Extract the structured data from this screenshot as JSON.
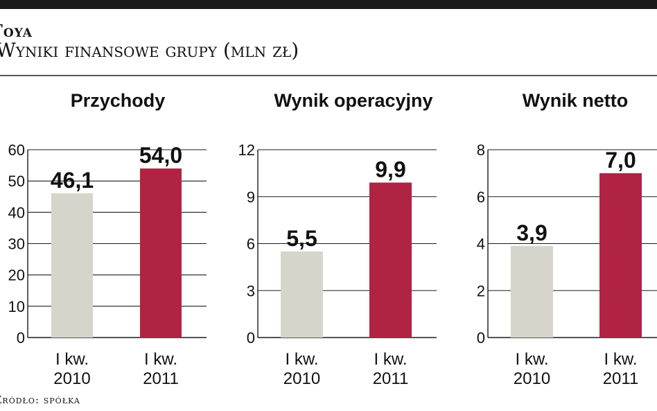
{
  "header": {
    "company": "Toya",
    "subtitle": "Wyniki finansowe grupy (mln zł)"
  },
  "footer": {
    "source": "Źródło: spółka"
  },
  "colors": {
    "bar_2010": "#d6d5cc",
    "bar_2011": "#b02343",
    "grid": "#1a1a1a",
    "text": "#111111"
  },
  "chart_data": [
    {
      "type": "bar",
      "title": "Przychody",
      "categories": [
        "I kw. 2010",
        "I kw. 2011"
      ],
      "category_lines": [
        [
          "I kw.",
          "2010"
        ],
        [
          "I kw.",
          "2011"
        ]
      ],
      "values": [
        46.1,
        54.0
      ],
      "value_labels": [
        "46,1",
        "54,0"
      ],
      "ylim": [
        0,
        60
      ],
      "yticks": [
        0,
        10,
        20,
        30,
        40,
        50,
        60
      ],
      "ytick_labels": [
        "0",
        "10",
        "20",
        "30",
        "40",
        "50",
        "60"
      ],
      "grid": true
    },
    {
      "type": "bar",
      "title": "Wynik operacyjny",
      "categories": [
        "I kw. 2010",
        "I kw. 2011"
      ],
      "category_lines": [
        [
          "I kw.",
          "2010"
        ],
        [
          "I kw.",
          "2011"
        ]
      ],
      "values": [
        5.5,
        9.9
      ],
      "value_labels": [
        "5,5",
        "9,9"
      ],
      "ylim": [
        0,
        12
      ],
      "yticks": [
        0,
        3,
        6,
        9,
        12
      ],
      "ytick_labels": [
        "0",
        "3",
        "6",
        "9",
        "12"
      ],
      "grid": true
    },
    {
      "type": "bar",
      "title": "Wynik netto",
      "categories": [
        "I kw. 2010",
        "I kw. 2011"
      ],
      "category_lines": [
        [
          "I kw.",
          "2010"
        ],
        [
          "I kw.",
          "2011"
        ]
      ],
      "values": [
        3.9,
        7.0
      ],
      "value_labels": [
        "3,9",
        "7,0"
      ],
      "ylim": [
        0,
        8
      ],
      "yticks": [
        0,
        2,
        4,
        6,
        8
      ],
      "ytick_labels": [
        "0",
        "2",
        "4",
        "6",
        "8"
      ],
      "grid": true
    }
  ]
}
